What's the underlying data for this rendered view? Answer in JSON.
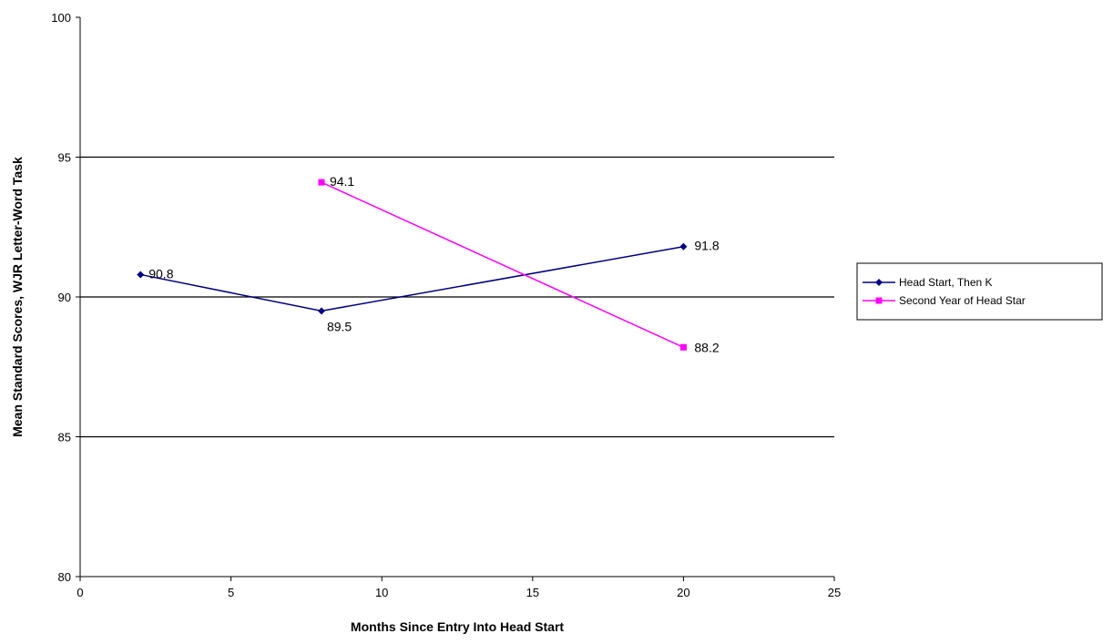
{
  "chart_data": {
    "type": "line",
    "title": "",
    "xlabel": "Months Since Entry Into Head Start",
    "ylabel": "Mean Standard Scores, WJR Letter-Word Task",
    "xlim": [
      0,
      25
    ],
    "ylim": [
      80,
      100
    ],
    "xticks": [
      "0",
      "5",
      "10",
      "15",
      "20",
      "25"
    ],
    "yticks": [
      "80",
      "85",
      "90",
      "95",
      "100"
    ],
    "grid": "horizontal major gridlines",
    "legend": "right",
    "series": [
      {
        "name": "Head Start, Then K",
        "color": "#000080",
        "marker": "diamond",
        "x": [
          2,
          8,
          20
        ],
        "y": [
          90.8,
          89.5,
          91.8
        ],
        "labels": [
          "90.8",
          "89.5",
          "91.8"
        ]
      },
      {
        "name": "Second Year of Head Star",
        "color": "#ff00ff",
        "marker": "square",
        "x": [
          8,
          20
        ],
        "y": [
          94.1,
          88.2
        ],
        "labels": [
          "94.1",
          "88.2"
        ]
      }
    ]
  }
}
